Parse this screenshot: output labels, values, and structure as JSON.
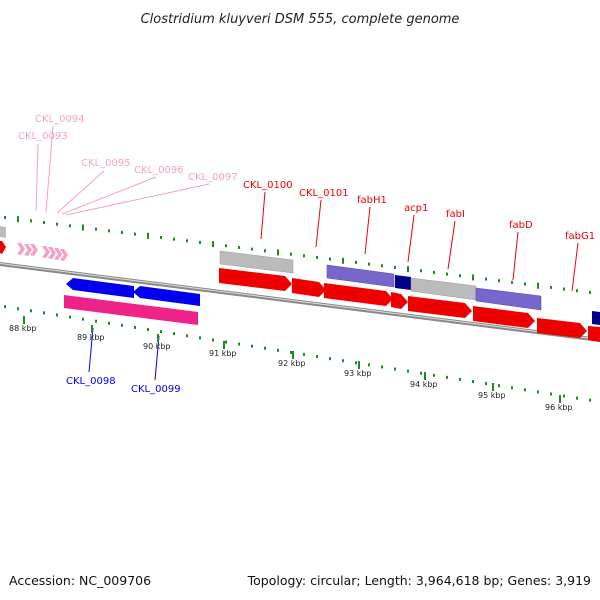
{
  "title": "Clostridium kluyveri DSM 555, complete genome",
  "footer": {
    "accession": "Accession: NC_009706",
    "summary": "Topology: circular; Length: 3,964,618 bp; Genes: 3,919"
  },
  "colors": {
    "forward_cds": "#ee0000",
    "reverse_cds": "#0000ee",
    "pseudo_pink": "#ee2288",
    "faded_pink": "#f4a0c8",
    "gray_feature": "#bbbbbb",
    "purple_feature": "#7766cc",
    "navy_feature": "#000088",
    "tick_green": "#228822",
    "backbone": "#888888"
  },
  "scale": {
    "unit": "kbp",
    "ticks": [
      {
        "pos": 88,
        "label": "88 kbp"
      },
      {
        "pos": 89,
        "label": "89 kbp"
      },
      {
        "pos": 90,
        "label": "90 kbp"
      },
      {
        "pos": 91,
        "label": "91 kbp"
      },
      {
        "pos": 92,
        "label": "92 kbp"
      },
      {
        "pos": 93,
        "label": "93 kbp"
      },
      {
        "pos": 94,
        "label": "94 kbp"
      },
      {
        "pos": 95,
        "label": "95 kbp"
      },
      {
        "pos": 96,
        "label": "96 kbp"
      }
    ]
  },
  "labels": {
    "faded_top": [
      "CKL_0094",
      "CKL_0093",
      "CKL_0095",
      "CKL_0096",
      "CKL_0097"
    ],
    "forward_top": [
      "CKL_0100",
      "CKL_0101",
      "fabH1",
      "acp1",
      "fabI",
      "fabD",
      "fabG1"
    ],
    "reverse_bottom": [
      "CKL_0098",
      "CKL_0099"
    ]
  }
}
